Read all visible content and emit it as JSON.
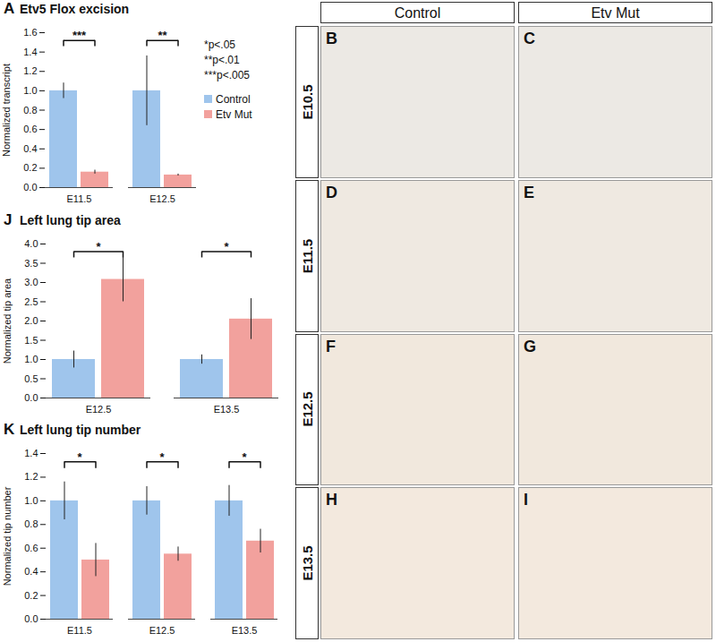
{
  "chart_data": [
    {
      "panel": "A",
      "type": "bar",
      "title": "Etv5 Flox excision",
      "y_label": "Normalized transcript",
      "categories": [
        "E11.5",
        "E12.5"
      ],
      "series": [
        {
          "name": "Control",
          "color": "#9fc5ec",
          "values": [
            1.0,
            1.0
          ],
          "errors": [
            0.08,
            0.36
          ]
        },
        {
          "name": "Etv Mut",
          "color": "#f2a19d",
          "values": [
            0.16,
            0.13
          ],
          "errors": [
            0.02,
            0.01
          ]
        }
      ],
      "ylim": [
        0,
        1.6
      ],
      "yticks": [
        {
          "value": 0,
          "label": "0.0"
        },
        0.2,
        0.4,
        0.6,
        0.8,
        {
          "value": 1,
          "label": "1.0"
        },
        1.2,
        1.4,
        1.6
      ],
      "grid": false,
      "legend": "right",
      "annotations": [
        "***",
        "**"
      ],
      "annotation_key": [
        "*p<.05",
        "**p<.01",
        "***p<.005"
      ]
    },
    {
      "panel": "J",
      "type": "bar",
      "title": "Left lung tip area",
      "y_label": "Normalized tip area",
      "categories": [
        "E12.5",
        "E13.5"
      ],
      "series": [
        {
          "name": "Control",
          "color": "#9fc5ec",
          "values": [
            1.0,
            1.0
          ],
          "errors": [
            0.22,
            0.12
          ]
        },
        {
          "name": "Etv Mut",
          "color": "#f2a19d",
          "values": [
            3.08,
            2.05
          ],
          "errors": [
            0.58,
            0.53
          ]
        }
      ],
      "ylim": [
        0,
        4
      ],
      "yticks": [
        {
          "value": 0,
          "label": "0.0"
        },
        0.5,
        {
          "value": 1,
          "label": "1.0"
        },
        1.5,
        {
          "value": 2,
          "label": "2.0"
        },
        2.5,
        {
          "value": 3,
          "label": "3.0"
        },
        3.5,
        {
          "value": 4,
          "label": "4.0"
        }
      ],
      "grid": false,
      "annotations": [
        "*",
        "*"
      ]
    },
    {
      "panel": "K",
      "type": "bar",
      "title": "Left lung tip number",
      "y_label": "Normalized tip number",
      "categories": [
        "E11.5",
        "E12.5",
        "E13.5"
      ],
      "series": [
        {
          "name": "Control",
          "color": "#9fc5ec",
          "values": [
            1.0,
            1.0,
            1.0
          ],
          "errors": [
            0.16,
            0.12,
            0.13
          ]
        },
        {
          "name": "Etv Mut",
          "color": "#f2a19d",
          "values": [
            0.5,
            0.55,
            0.66
          ],
          "errors": [
            0.14,
            0.06,
            0.1
          ]
        }
      ],
      "ylim": [
        0,
        1.4
      ],
      "yticks": [
        {
          "value": 0,
          "label": "0.0"
        },
        0.2,
        0.4,
        0.6,
        0.8,
        {
          "value": 1,
          "label": "1.0"
        },
        1.2,
        1.4
      ],
      "grid": false,
      "annotations": [
        "*",
        "*",
        "*"
      ]
    }
  ],
  "image_grid": {
    "columns": [
      "Control",
      "Etv Mut"
    ],
    "rows": [
      {
        "label": "E10.5",
        "panels": [
          "B",
          "C"
        ]
      },
      {
        "label": "E11.5",
        "panels": [
          "D",
          "E"
        ]
      },
      {
        "label": "E12.5",
        "panels": [
          "F",
          "G"
        ]
      },
      {
        "label": "E13.5",
        "panels": [
          "H",
          "I"
        ]
      }
    ]
  }
}
